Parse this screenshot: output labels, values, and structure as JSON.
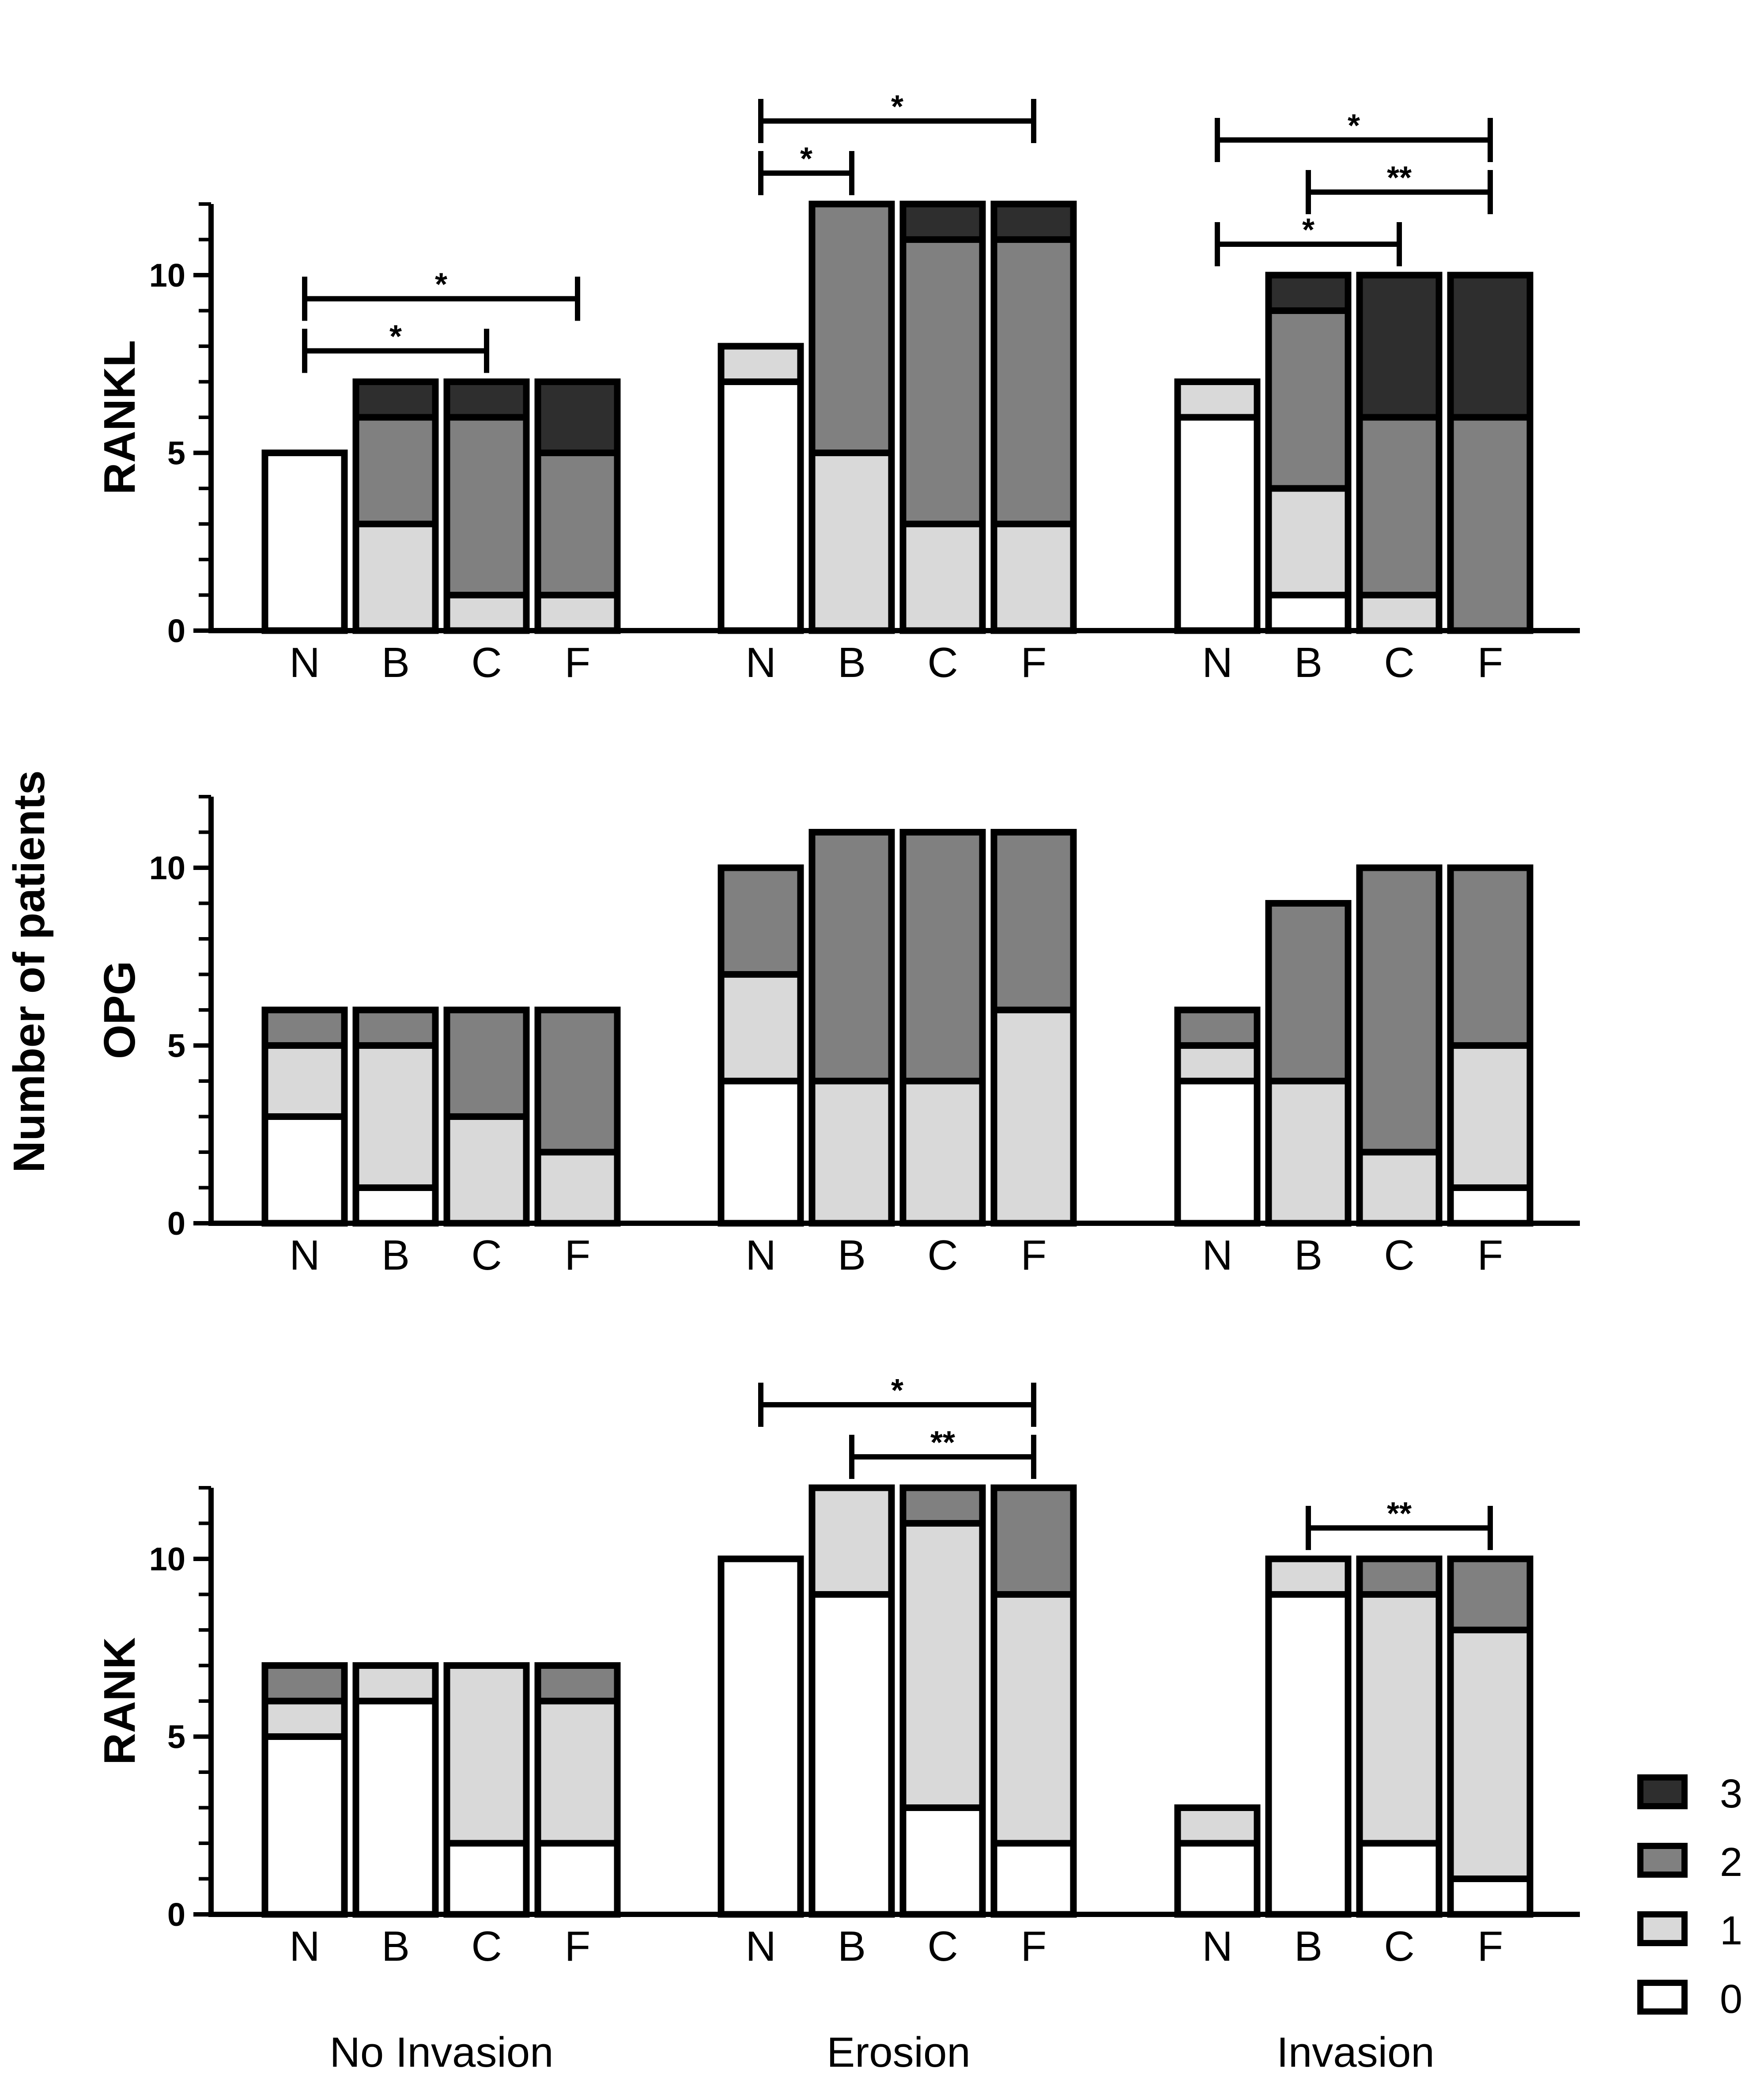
{
  "chart_data": {
    "type": "stacked-bar",
    "ylabel": "Number of patients",
    "groups": [
      "No Invasion",
      "Erosion",
      "Invasion"
    ],
    "categories": [
      "N",
      "B",
      "C",
      "F"
    ],
    "score_levels": [
      "0",
      "1",
      "2",
      "3"
    ],
    "colors": {
      "0": "#ffffff",
      "1": "#d9d9d9",
      "2": "#808080",
      "3": "#2e2e2e"
    },
    "ylim": [
      0,
      12
    ],
    "yticks": [
      "0",
      "5",
      "10"
    ],
    "legend": {
      "position": "bottom-right",
      "labels": [
        "3",
        "2",
        "1",
        "0"
      ]
    },
    "panels": [
      {
        "title": "RANKL",
        "bars": [
          [
            [
              5,
              0,
              0,
              0
            ],
            [
              0,
              3,
              3,
              1
            ],
            [
              0,
              1,
              5,
              1
            ],
            [
              0,
              1,
              4,
              2
            ]
          ],
          [
            [
              7,
              1,
              0,
              0
            ],
            [
              0,
              5,
              7,
              0
            ],
            [
              0,
              3,
              8,
              1
            ],
            [
              0,
              3,
              8,
              1
            ]
          ],
          [
            [
              6,
              1,
              0,
              0
            ],
            [
              1,
              3,
              5,
              1
            ],
            [
              0,
              1,
              5,
              4
            ],
            [
              0,
              0,
              6,
              4
            ]
          ]
        ],
        "significance": [
          {
            "group": 0,
            "from": "N",
            "to": "C",
            "label": "*"
          },
          {
            "group": 0,
            "from": "N",
            "to": "F",
            "label": "*"
          },
          {
            "group": 1,
            "from": "N",
            "to": "B",
            "label": "*"
          },
          {
            "group": 1,
            "from": "N",
            "to": "F",
            "label": "*"
          },
          {
            "group": 2,
            "from": "N",
            "to": "C",
            "label": "*"
          },
          {
            "group": 2,
            "from": "N",
            "to": "F",
            "label": "*"
          },
          {
            "group": 2,
            "from": "B",
            "to": "F",
            "label": "**"
          }
        ]
      },
      {
        "title": "OPG",
        "bars": [
          [
            [
              3,
              2,
              1,
              0
            ],
            [
              1,
              4,
              1,
              0
            ],
            [
              0,
              3,
              3,
              0
            ],
            [
              0,
              2,
              4,
              0
            ]
          ],
          [
            [
              4,
              3,
              3,
              0
            ],
            [
              0,
              4,
              7,
              0
            ],
            [
              0,
              4,
              7,
              0
            ],
            [
              0,
              6,
              5,
              0
            ]
          ],
          [
            [
              4,
              1,
              1,
              0
            ],
            [
              0,
              4,
              5,
              0
            ],
            [
              0,
              2,
              8,
              0
            ],
            [
              1,
              4,
              5,
              0
            ]
          ]
        ],
        "significance": []
      },
      {
        "title": "RANK",
        "bars": [
          [
            [
              5,
              1,
              1,
              0
            ],
            [
              6,
              1,
              0,
              0
            ],
            [
              2,
              5,
              0,
              0
            ],
            [
              2,
              4,
              1,
              0
            ]
          ],
          [
            [
              10,
              0,
              0,
              0
            ],
            [
              9,
              3,
              0,
              0
            ],
            [
              3,
              8,
              1,
              0
            ],
            [
              2,
              7,
              3,
              0
            ]
          ],
          [
            [
              2,
              1,
              0,
              0
            ],
            [
              9,
              1,
              0,
              0
            ],
            [
              2,
              7,
              1,
              0
            ],
            [
              1,
              7,
              2,
              0
            ]
          ]
        ],
        "significance": [
          {
            "group": 1,
            "from": "N",
            "to": "F",
            "label": "*"
          },
          {
            "group": 1,
            "from": "B",
            "to": "F",
            "label": "**"
          },
          {
            "group": 2,
            "from": "B",
            "to": "F",
            "label": "**"
          }
        ]
      }
    ]
  }
}
